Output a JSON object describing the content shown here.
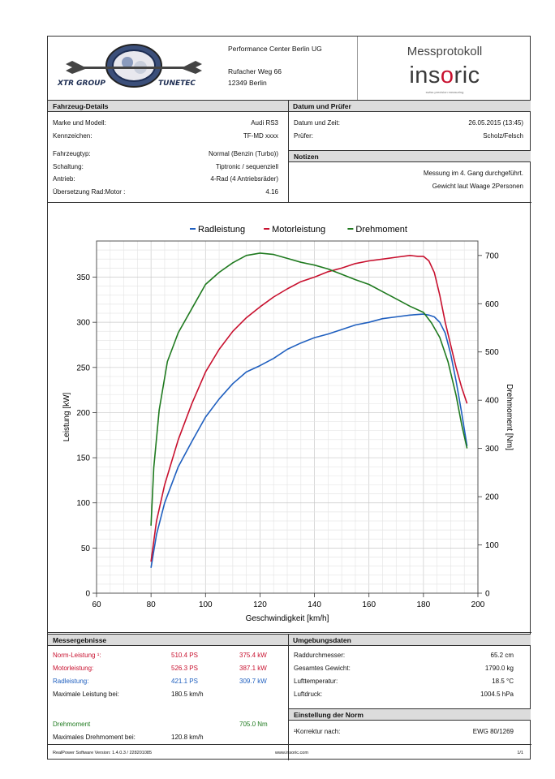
{
  "header": {
    "logo_text_left": "XTR GROUP",
    "logo_text_right": "TUNETEC",
    "company": "Performance Center Berlin UG",
    "street": "Rufacher Weg 66",
    "city": "12349 Berlin",
    "doc_title": "Messprotokoll",
    "brand_pre": "ins",
    "brand_o": "o",
    "brand_post": "ric",
    "brand_tagline": "swiss precision measuring"
  },
  "vehicle": {
    "title": "Fahrzeug-Details",
    "rows": [
      {
        "label": "Marke und Modell:",
        "value": "Audi RS3"
      },
      {
        "label": "Kennzeichen:",
        "value": "TF-MD xxxx"
      },
      {
        "label": "Fahrzeugtyp:",
        "value": "Normal (Benzin (Turbo))"
      },
      {
        "label": "Schaltung:",
        "value": "Tiptronic / sequenziell"
      },
      {
        "label": "Antrieb:",
        "value": "4-Rad (4 Antriebsräder)"
      },
      {
        "label": "Übersetzung Rad:Motor :",
        "value": "4.16"
      }
    ]
  },
  "date": {
    "title": "Datum und Prüfer",
    "rows": [
      {
        "label": "Datum und Zeit:",
        "value": "26.05.2015 (13:45)"
      },
      {
        "label": "Prüfer:",
        "value": "Scholz/Felsch"
      }
    ]
  },
  "notes": {
    "title": "Notizen",
    "line1": "Messung im 4. Gang durchgeführt.",
    "line2": "Gewicht laut Waage 2Personen"
  },
  "results": {
    "title": "Messergebnisse",
    "rows": [
      {
        "label": "Norm-Leistung ¹:",
        "ps": "510.4 PS",
        "kw": "375.4 kW",
        "color": "#c8102e"
      },
      {
        "label": "Motorleistung:",
        "ps": "526.3 PS",
        "kw": "387.1 kW",
        "color": "#c8102e"
      },
      {
        "label": "Radleistung:",
        "ps": "421.1 PS",
        "kw": "309.7 kW",
        "color": "#1f5fbf"
      }
    ],
    "max_power_label": "Maximale Leistung bei:",
    "max_power_value": "180.5 km/h",
    "torque_label": "Drehmoment",
    "torque_value": "705.0 Nm",
    "max_torque_label": "Maximales Drehmoment bei:",
    "max_torque_value": "120.8 km/h"
  },
  "environment": {
    "title": "Umgebungsdaten",
    "rows": [
      {
        "label": "Raddurchmesser:",
        "value": "65.2 cm"
      },
      {
        "label": "Gesamtes Gewicht:",
        "value": "1790.0 kg"
      },
      {
        "label": "Lufttemperatur:",
        "value": "18.5 °C"
      },
      {
        "label": "Luftdruck:",
        "value": "1004.5 hPa"
      }
    ]
  },
  "norm": {
    "title": "Einstellung der Norm",
    "label": "¹Korrektur nach:",
    "value": "EWG 80/1269"
  },
  "footer": {
    "software": "RealPower Software Version: 1.4.0.3 / 228201085",
    "url": "www.insoric.com",
    "page": "1/1"
  },
  "colors": {
    "rad": "#1f5fbf",
    "motor": "#c8102e",
    "torque": "#1f7a1f"
  },
  "chart_data": {
    "type": "line",
    "xlabel": "Geschwindigkeit [km/h]",
    "ylabel": "Leistung [kW]",
    "y2label": "Drehmoment [Nm]",
    "xlim": [
      60,
      200
    ],
    "ylim": [
      0,
      390
    ],
    "y2lim": [
      0,
      730
    ],
    "xticks": [
      60,
      80,
      100,
      120,
      140,
      160,
      180,
      200
    ],
    "yticks": [
      0,
      50,
      100,
      150,
      200,
      250,
      300,
      350
    ],
    "y2ticks": [
      0,
      100,
      200,
      300,
      400,
      500,
      600,
      700
    ],
    "grid": true,
    "legend_position": "top",
    "series": [
      {
        "name": "Radleistung",
        "axis": "left",
        "color": "#1f5fbf",
        "x": [
          80,
          82,
          85,
          90,
          95,
          100,
          105,
          110,
          115,
          120,
          125,
          130,
          135,
          140,
          145,
          150,
          155,
          160,
          165,
          170,
          175,
          180,
          182,
          184,
          186,
          188,
          190,
          192,
          194,
          196
        ],
        "y": [
          28,
          65,
          100,
          140,
          168,
          195,
          215,
          232,
          245,
          252,
          260,
          270,
          277,
          283,
          287,
          292,
          297,
          300,
          304,
          306,
          308,
          309,
          308,
          306,
          300,
          288,
          265,
          235,
          200,
          163
        ]
      },
      {
        "name": "Motorleistung",
        "axis": "left",
        "color": "#c8102e",
        "x": [
          80,
          82,
          85,
          90,
          95,
          100,
          105,
          110,
          115,
          120,
          125,
          130,
          135,
          140,
          145,
          150,
          155,
          160,
          165,
          170,
          175,
          178,
          180,
          182,
          184,
          186,
          188,
          190,
          192,
          194,
          196
        ],
        "y": [
          35,
          80,
          120,
          170,
          210,
          245,
          270,
          290,
          305,
          317,
          328,
          337,
          345,
          350,
          356,
          360,
          365,
          368,
          370,
          372,
          374,
          373,
          373,
          368,
          355,
          330,
          300,
          275,
          250,
          228,
          210
        ]
      },
      {
        "name": "Drehmoment",
        "axis": "right",
        "color": "#1f7a1f",
        "x": [
          80,
          81,
          83,
          86,
          90,
          95,
          100,
          105,
          110,
          115,
          120,
          125,
          130,
          135,
          140,
          145,
          150,
          155,
          160,
          165,
          170,
          175,
          180,
          183,
          186,
          189,
          192,
          194,
          196
        ],
        "y": [
          140,
          260,
          380,
          480,
          540,
          590,
          640,
          665,
          685,
          700,
          705,
          702,
          694,
          686,
          680,
          672,
          661,
          650,
          640,
          625,
          610,
          595,
          582,
          560,
          530,
          480,
          410,
          350,
          300
        ]
      }
    ]
  }
}
